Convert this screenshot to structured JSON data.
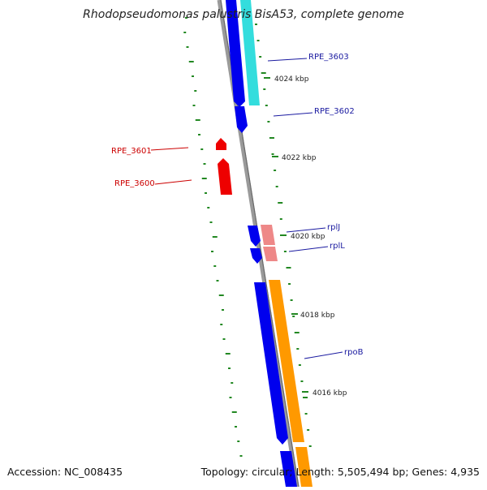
{
  "title": "Rhodopseudomonas palustris BisA53, complete genome",
  "accession": "Accession: NC_008435",
  "topology": "Topology: circular; Length: 5,505,494 bp; Genes: 4,935",
  "colors": {
    "backbone": "#888888",
    "forward_cds": "#0000ee",
    "forward_gene": "#33dddd",
    "forward_rna": "#ee8888",
    "forward_orange": "#ff9900",
    "reverse_cds": "#ee0000",
    "tick": "#228822",
    "label_forward": "#1a1aa0",
    "label_reverse": "#cc0000"
  },
  "kbp_ticks": [
    {
      "kbp": 4024,
      "label": "4024 kbp"
    },
    {
      "kbp": 4022,
      "label": "4022 kbp"
    },
    {
      "kbp": 4020,
      "label": "4020 kbp"
    },
    {
      "kbp": 4018,
      "label": "4018 kbp"
    },
    {
      "kbp": 4016,
      "label": "4016 kbp"
    }
  ],
  "gene_labels": [
    {
      "text": "RPE_3603",
      "strand": "forward"
    },
    {
      "text": "RPE_3602",
      "strand": "forward"
    },
    {
      "text": "RPE_3601",
      "strand": "reverse"
    },
    {
      "text": "RPE_3600",
      "strand": "reverse"
    },
    {
      "text": "rplJ",
      "strand": "forward"
    },
    {
      "text": "rplL",
      "strand": "forward"
    },
    {
      "text": "rpoB",
      "strand": "forward"
    }
  ]
}
